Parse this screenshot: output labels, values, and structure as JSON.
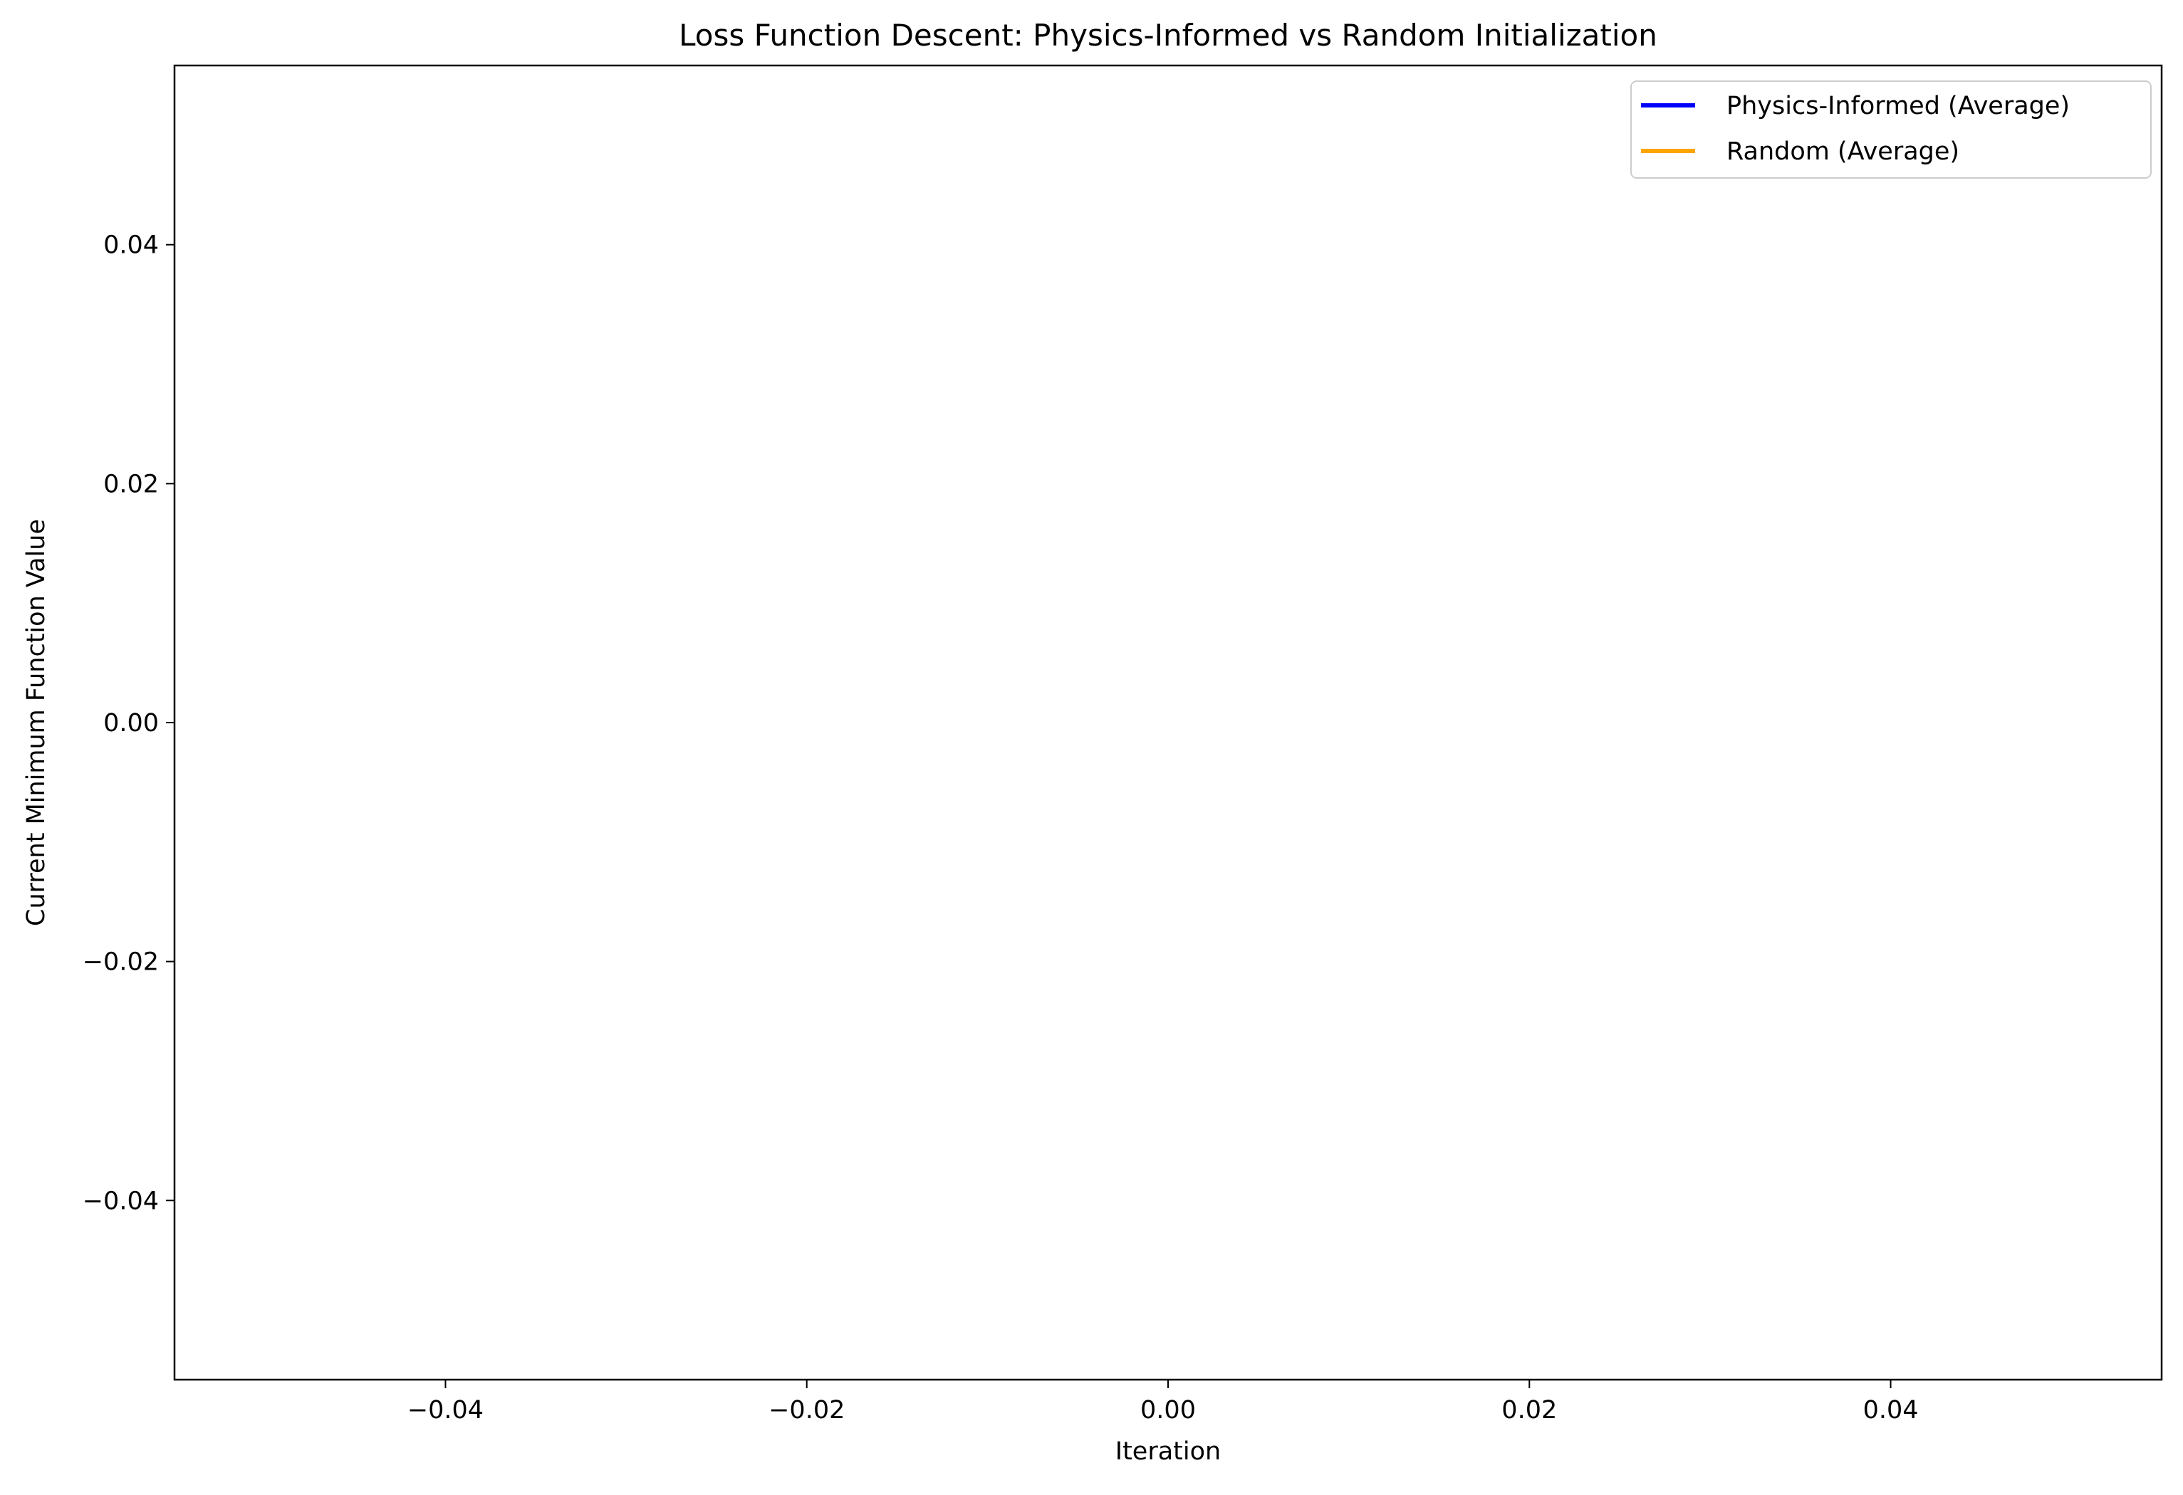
{
  "chart_data": {
    "type": "line",
    "title": "Loss Function Descent: Physics-Informed vs Random Initialization",
    "xlabel": "Iteration",
    "ylabel": "Current Minimum Function Value",
    "xlim": [
      -0.055,
      0.055
    ],
    "ylim": [
      -0.055,
      0.055
    ],
    "x_ticks": [
      -0.04,
      -0.02,
      0.0,
      0.02,
      0.04
    ],
    "x_tick_labels": [
      "−0.04",
      "−0.02",
      "0.00",
      "0.02",
      "0.04"
    ],
    "y_ticks": [
      -0.04,
      -0.02,
      0.0,
      0.02,
      0.04
    ],
    "y_tick_labels": [
      "−0.04",
      "−0.02",
      "0.00",
      "0.02",
      "0.04"
    ],
    "grid": false,
    "legend_position": "top-right",
    "series": [
      {
        "name": "Physics-Informed (Average)",
        "color": "#0000ff",
        "x": [],
        "y": []
      },
      {
        "name": "Random (Average)",
        "color": "#ffa500",
        "x": [],
        "y": []
      }
    ]
  }
}
